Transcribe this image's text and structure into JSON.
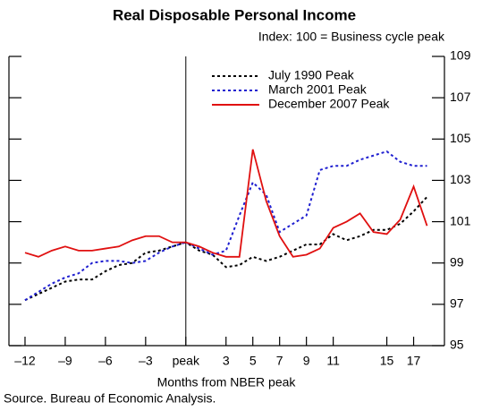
{
  "chart_data": {
    "type": "line",
    "title": "Real Disposable Personal Income",
    "subtitle": "Index: 100 = Business cycle peak",
    "x_label": "Months from NBER peak",
    "source": "Source. Bureau of Economic Analysis.",
    "x": [
      -12,
      -11,
      -10,
      -9,
      -8,
      -7,
      -6,
      -5,
      -4,
      -3,
      -2,
      -1,
      0,
      1,
      2,
      3,
      4,
      5,
      6,
      7,
      8,
      9,
      10,
      11,
      12,
      13,
      14,
      15,
      16,
      17,
      18
    ],
    "xlim": [
      -13.2,
      19.3
    ],
    "xticks": [
      {
        "value": -12,
        "label": "–12"
      },
      {
        "value": -9,
        "label": "–9"
      },
      {
        "value": -6,
        "label": "–6"
      },
      {
        "value": -3,
        "label": "–3"
      },
      {
        "value": 0,
        "label": "peak"
      },
      3,
      5,
      7,
      9,
      11,
      15,
      17
    ],
    "ylim": [
      95,
      109
    ],
    "yticks": [
      95,
      97,
      99,
      101,
      103,
      105,
      107,
      109
    ],
    "y_axis_side": "right",
    "peak_line": 0,
    "series": [
      {
        "name": "July 1990 Peak",
        "color": "#000000",
        "dash": "dotted",
        "values": [
          97.2,
          97.5,
          97.8,
          98.1,
          98.2,
          98.2,
          98.6,
          98.9,
          99.0,
          99.5,
          99.6,
          99.8,
          100.0,
          99.6,
          99.4,
          98.8,
          98.9,
          99.3,
          99.1,
          99.3,
          99.6,
          99.9,
          99.9,
          100.4,
          100.1,
          100.3,
          100.6,
          100.6,
          100.9,
          101.5,
          102.2
        ]
      },
      {
        "name": "March 2001 Peak",
        "color": "#1f1fd0",
        "dash": "dotted",
        "values": [
          97.2,
          97.6,
          98.0,
          98.3,
          98.5,
          99.0,
          99.1,
          99.1,
          99.0,
          99.1,
          99.5,
          99.8,
          100.0,
          99.7,
          99.4,
          99.6,
          101.3,
          102.9,
          102.3,
          100.5,
          100.9,
          101.3,
          103.5,
          103.7,
          103.7,
          104.0,
          104.2,
          104.4,
          103.9,
          103.7,
          103.7
        ]
      },
      {
        "name": "December 2007 Peak",
        "color": "#e01010",
        "dash": "solid",
        "values": [
          99.5,
          99.3,
          99.6,
          99.8,
          99.6,
          99.6,
          99.7,
          99.8,
          100.1,
          100.3,
          100.3,
          100.0,
          100.0,
          99.8,
          99.5,
          99.3,
          99.3,
          104.5,
          102.0,
          100.3,
          99.3,
          99.4,
          99.7,
          100.7,
          101.0,
          101.4,
          100.5,
          100.4,
          101.1,
          102.7,
          100.8
        ]
      }
    ]
  }
}
